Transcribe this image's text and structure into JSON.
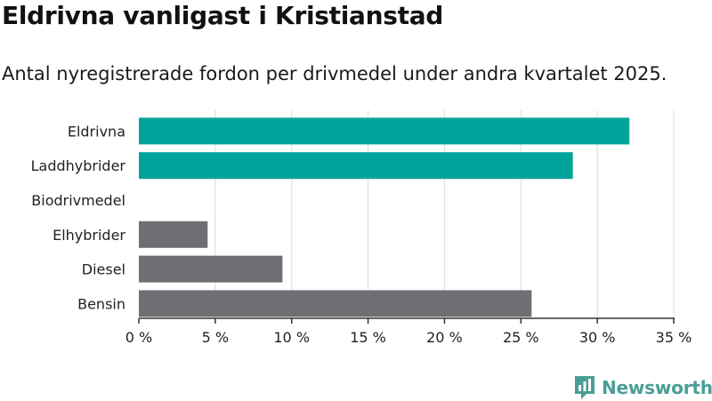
{
  "title": "Eldrivna vanligast i Kristianstad",
  "subtitle": "Antal nyregistrerade fordon per drivmedel under andra kvartalet 2025.",
  "brand": "Newsworthy",
  "colors": {
    "highlight": "#00a39a",
    "default": "#6f6e73",
    "grid": "#dcdcdc",
    "logo": "#4a9e97"
  },
  "chart_data": {
    "type": "bar",
    "orientation": "horizontal",
    "categories": [
      "Eldrivna",
      "Laddhybrider",
      "Biodrivmedel",
      "Elhybrider",
      "Diesel",
      "Bensin"
    ],
    "values": [
      32.1,
      28.4,
      0,
      4.5,
      9.4,
      25.7
    ],
    "highlighted": [
      true,
      true,
      true,
      false,
      false,
      false
    ],
    "xlim": [
      0,
      35
    ],
    "x_ticks": [
      0,
      5,
      10,
      15,
      20,
      25,
      30,
      35
    ],
    "x_tick_labels": [
      "0 %",
      "5 %",
      "10 %",
      "15 %",
      "20 %",
      "25 %",
      "30 %",
      "35 %"
    ],
    "grid": true,
    "xlabel": "",
    "ylabel": ""
  }
}
